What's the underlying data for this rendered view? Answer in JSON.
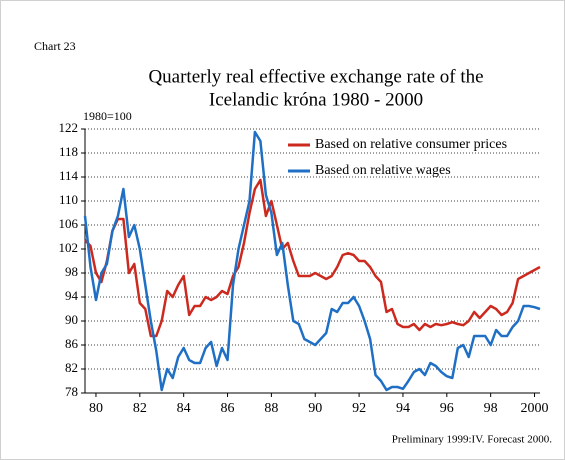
{
  "chart_data": {
    "type": "line",
    "label": "Chart 23",
    "title": [
      "Quarterly real effective exchange rate of the",
      "Icelandic króna 1980 - 2000"
    ],
    "ylabel": "1980=100",
    "note": "Preliminary 1999:IV. Forecast 2000.",
    "x": [
      1980,
      1980.25,
      1980.5,
      1980.75,
      1981,
      1981.25,
      1981.5,
      1981.75,
      1982,
      1982.25,
      1982.5,
      1982.75,
      1983,
      1983.25,
      1983.5,
      1983.75,
      1984,
      1984.25,
      1984.5,
      1984.75,
      1985,
      1985.25,
      1985.5,
      1985.75,
      1986,
      1986.25,
      1986.5,
      1986.75,
      1987,
      1987.25,
      1987.5,
      1987.75,
      1988,
      1988.25,
      1988.5,
      1988.75,
      1989,
      1989.25,
      1989.5,
      1989.75,
      1990,
      1990.25,
      1990.5,
      1990.75,
      1991,
      1991.25,
      1991.5,
      1991.75,
      1992,
      1992.25,
      1992.5,
      1992.75,
      1993,
      1993.25,
      1993.5,
      1993.75,
      1994,
      1994.25,
      1994.5,
      1994.75,
      1995,
      1995.25,
      1995.5,
      1995.75,
      1996,
      1996.25,
      1996.5,
      1996.75,
      1997,
      1997.25,
      1997.5,
      1997.75,
      1998,
      1998.25,
      1998.5,
      1998.75,
      1999,
      1999.25,
      1999.5,
      1999.75,
      2000,
      2000.25,
      2000.5,
      2000.75
    ],
    "series": [
      {
        "name": "Based on relative consumer prices",
        "color": "#cc2a1f",
        "values": [
          103.5,
          102.5,
          98,
          96.5,
          100,
          105,
          107,
          107,
          98,
          99.5,
          93,
          92,
          87.5,
          87.5,
          90,
          95,
          94,
          96,
          97.5,
          91,
          92.5,
          92.5,
          94,
          93.5,
          94,
          95,
          94.5,
          97.5,
          99,
          103,
          108,
          112,
          113.5,
          107.5,
          110,
          106,
          102,
          103,
          100,
          97.5,
          97.5,
          97.5,
          98,
          97.5,
          97,
          97.5,
          99,
          101,
          101.3,
          101,
          100,
          100,
          99,
          97.5,
          96.5,
          91.5,
          92,
          89.5,
          89,
          89,
          89.5,
          88.5,
          89.5,
          89,
          89.5,
          89.3,
          89.5,
          89.8,
          89.5,
          89.3,
          90,
          91.5,
          90.5,
          91.5,
          92.5,
          92,
          91,
          91.5,
          93,
          97,
          97.5,
          98,
          98.5,
          99
        ]
      },
      {
        "name": "Based on relative wages",
        "color": "#1f6fc4",
        "values": [
          107.5,
          99,
          93.5,
          98,
          99.5,
          105,
          107.5,
          112,
          104,
          106,
          102,
          96,
          90,
          85,
          78.5,
          82,
          80.5,
          84,
          85.5,
          83.5,
          83,
          83,
          85.5,
          86.5,
          82.5,
          85.5,
          83.5,
          96,
          102,
          106,
          110,
          121.5,
          120,
          111,
          108,
          101,
          103,
          96,
          90,
          89.5,
          87,
          86.5,
          86,
          87,
          88,
          92,
          91.5,
          93,
          93,
          94,
          92.5,
          90,
          87,
          81,
          80,
          78.5,
          79,
          79,
          78.7,
          80,
          81.5,
          82,
          81,
          83,
          82.5,
          81.5,
          80.8,
          80.5,
          85.5,
          86,
          84,
          87.5,
          87.5,
          87.5,
          86,
          88.5,
          87.5,
          87.5,
          89,
          90,
          92.5,
          92.5,
          92.3,
          92
        ]
      }
    ],
    "xlim": [
      1980,
      2000.75
    ],
    "xticks": [
      {
        "value": 1980.5,
        "label": "80"
      },
      {
        "value": 1982.5,
        "label": "82"
      },
      {
        "value": 1984.5,
        "label": "84"
      },
      {
        "value": 1986.5,
        "label": "86"
      },
      {
        "value": 1988.5,
        "label": "88"
      },
      {
        "value": 1990.5,
        "label": "90"
      },
      {
        "value": 1992.5,
        "label": "92"
      },
      {
        "value": 1994.5,
        "label": "94"
      },
      {
        "value": 1996.5,
        "label": "96"
      },
      {
        "value": 1998.5,
        "label": "98"
      },
      {
        "value": 2000.5,
        "label": "2000"
      }
    ],
    "ylim": [
      78,
      122
    ],
    "yticks": [
      78,
      82,
      86,
      90,
      94,
      98,
      102,
      106,
      110,
      114,
      118,
      122
    ],
    "grid": true,
    "legend": "upper right"
  }
}
